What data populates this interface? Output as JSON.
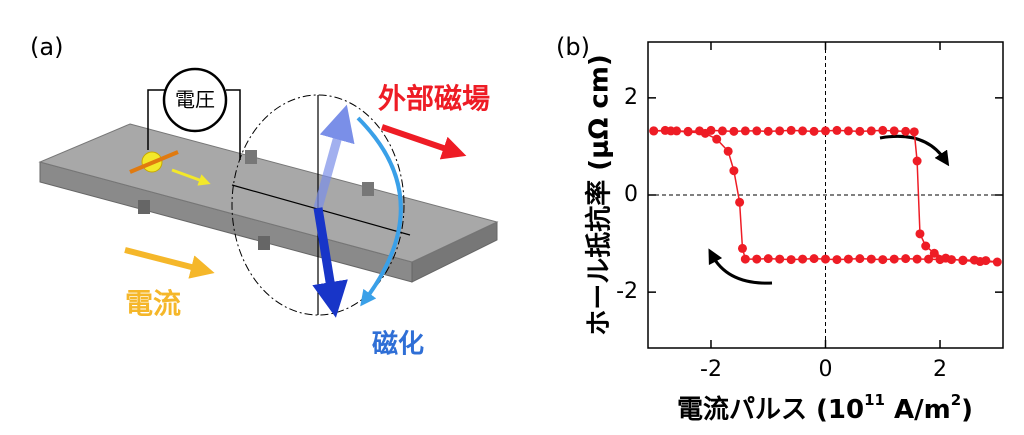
{
  "panel_a": {
    "label": "(a)",
    "voltage": "電圧",
    "field": "外部磁場",
    "current": "電流",
    "magnetization": "磁化"
  },
  "chart_data": {
    "type": "line",
    "panel_label": "(b)",
    "xlabel": [
      "電流パルス (10",
      "11",
      " A/m",
      "2",
      ")"
    ],
    "ylabel": "ホール抵抗率 (μΩ cm)",
    "xlim": [
      -3.1,
      3.1
    ],
    "ylim": [
      -3.15,
      3.15
    ],
    "xticks": [
      -2,
      0,
      2
    ],
    "yticks": [
      -2,
      0,
      2
    ],
    "zero_lines": true,
    "series": [
      {
        "color": "#ee1c25",
        "x": [
          -3,
          -2.8,
          -2.6,
          -2.4,
          -2.2,
          -2,
          -1.8,
          -1.6,
          -1.4,
          -1.2,
          -1,
          -0.8,
          -0.6,
          -0.4,
          -0.2,
          0,
          0.2,
          0.4,
          0.6,
          0.8,
          1,
          1.2,
          1.4,
          1.55,
          1.6,
          1.65,
          1.75,
          1.9,
          2.1,
          2.4,
          2.7,
          3,
          2.8,
          2.6,
          2.4,
          2.2,
          2,
          1.8,
          1.6,
          1.4,
          1.2,
          1,
          0.8,
          0.6,
          0.4,
          0.2,
          0,
          -0.2,
          -0.4,
          -0.6,
          -0.8,
          -1,
          -1.2,
          -1.4,
          -1.45,
          -1.5,
          -1.6,
          -1.7,
          -1.9,
          -2.1,
          -2.4,
          -2.7,
          -3
        ],
        "values": [
          1.32,
          1.33,
          1.32,
          1.31,
          1.32,
          1.33,
          1.32,
          1.31,
          1.32,
          1.32,
          1.31,
          1.32,
          1.33,
          1.32,
          1.31,
          1.32,
          1.33,
          1.32,
          1.31,
          1.32,
          1.33,
          1.32,
          1.31,
          1.3,
          0.7,
          -0.8,
          -1.05,
          -1.2,
          -1.3,
          -1.35,
          -1.37,
          -1.38,
          -1.35,
          -1.34,
          -1.34,
          -1.33,
          -1.33,
          -1.32,
          -1.32,
          -1.31,
          -1.32,
          -1.33,
          -1.32,
          -1.31,
          -1.32,
          -1.33,
          -1.32,
          -1.31,
          -1.32,
          -1.33,
          -1.32,
          -1.31,
          -1.32,
          -1.32,
          -1.1,
          -0.15,
          0.5,
          0.9,
          1.15,
          1.27,
          1.3,
          1.32,
          1.32
        ]
      }
    ]
  }
}
